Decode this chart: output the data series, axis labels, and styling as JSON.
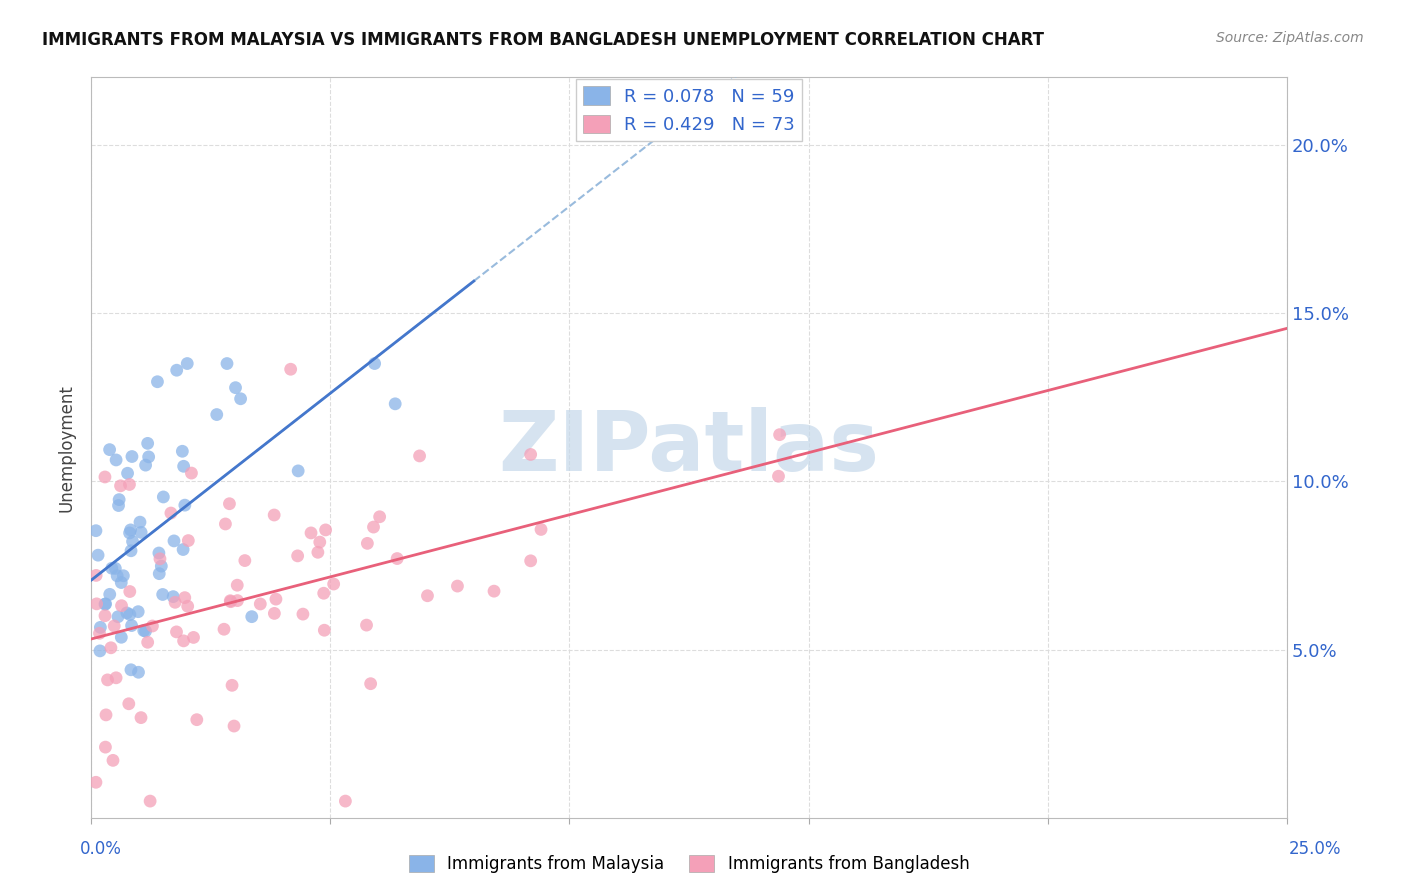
{
  "title": "IMMIGRANTS FROM MALAYSIA VS IMMIGRANTS FROM BANGLADESH UNEMPLOYMENT CORRELATION CHART",
  "source": "Source: ZipAtlas.com",
  "ylabel": "Unemployment",
  "xlim": [
    0.0,
    0.25
  ],
  "ylim": [
    0.0,
    0.22
  ],
  "yticks": [
    0.05,
    0.1,
    0.15,
    0.2
  ],
  "ytick_labels": [
    "5.0%",
    "10.0%",
    "15.0%",
    "20.0%"
  ],
  "color_malaysia": "#8ab4e8",
  "color_bangladesh": "#f4a0b8",
  "line_malaysia_solid": "#4477cc",
  "line_malaysia_dashed": "#99bbdd",
  "line_bangladesh": "#e8607a",
  "background_color": "#ffffff",
  "grid_color": "#dddddd",
  "watermark_color": "#c5d8ea",
  "watermark_text": "ZIPatlas"
}
